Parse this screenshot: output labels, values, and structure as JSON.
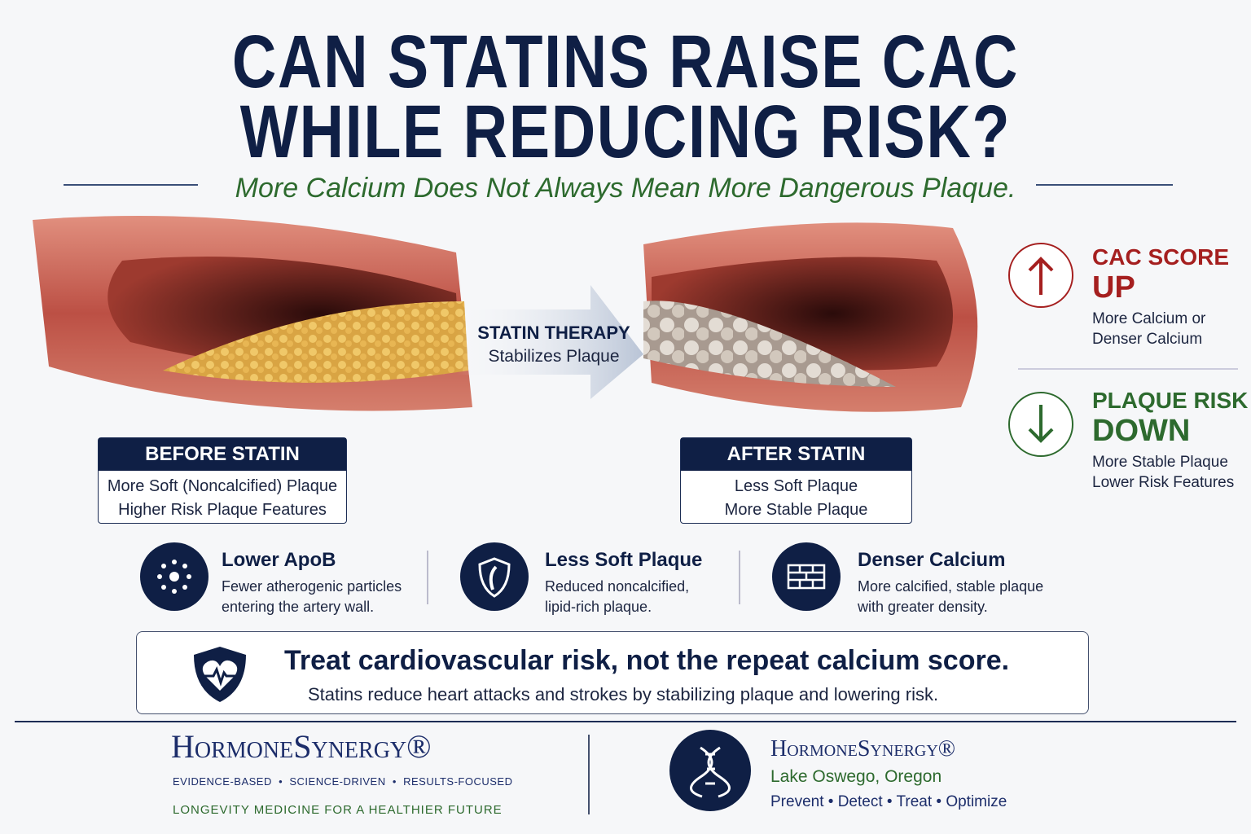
{
  "header": {
    "title_lines": [
      "CAN STATINS RAISE CAC",
      "WHILE REDUCING RISK?"
    ],
    "subtitle": "More Calcium Does Not Always Mean More Dangerous Plaque."
  },
  "comparison": {
    "arrow": {
      "title": "STATIN THERAPY",
      "subtitle": "Stabilizes Plaque"
    },
    "before": {
      "title": "BEFORE STATIN",
      "line1": "More Soft (Noncalcified) Plaque",
      "line2": "Higher Risk Plaque Features"
    },
    "after": {
      "title": "AFTER STATIN",
      "line1": "Less Soft Plaque",
      "line2": "More Stable Plaque"
    }
  },
  "indicators": [
    {
      "title_top": "CAC SCORE",
      "title_big": "UP",
      "lines": [
        "More Calcium or",
        "Denser Calcium"
      ]
    },
    {
      "title_top": "PLAQUE RISK",
      "title_big": "DOWN",
      "lines": [
        "More Stable Plaque",
        "Lower Risk Features"
      ]
    }
  ],
  "features": [
    {
      "title": "Lower ApoB",
      "lines": [
        "Fewer atherogenic particles",
        "entering the artery wall."
      ]
    },
    {
      "title": "Less Soft Plaque",
      "lines": [
        "Reduced noncalcified,",
        "lipid-rich plaque."
      ]
    },
    {
      "title": "Denser Calcium",
      "lines": [
        "More calcified, stable plaque",
        "with greater density."
      ]
    }
  ],
  "callout": {
    "title": "Treat cardiovascular risk, not the repeat calcium score.",
    "text": "Statins reduce heart attacks and strokes by stabilizing plaque and lowering risk."
  },
  "footer": {
    "left": {
      "brand": "HormoneSynergy®",
      "tagline": "EVIDENCE-BASED  •  SCIENCE-DRIVEN  •  RESULTS-FOCUSED",
      "motto": "LONGEVITY MEDICINE FOR A HEALTHIER FUTURE"
    },
    "right": {
      "brand": "HormoneSynergy®",
      "location": "Lake Oswego, Oregon",
      "services": "Prevent • Detect • Treat • Optimize"
    }
  }
}
